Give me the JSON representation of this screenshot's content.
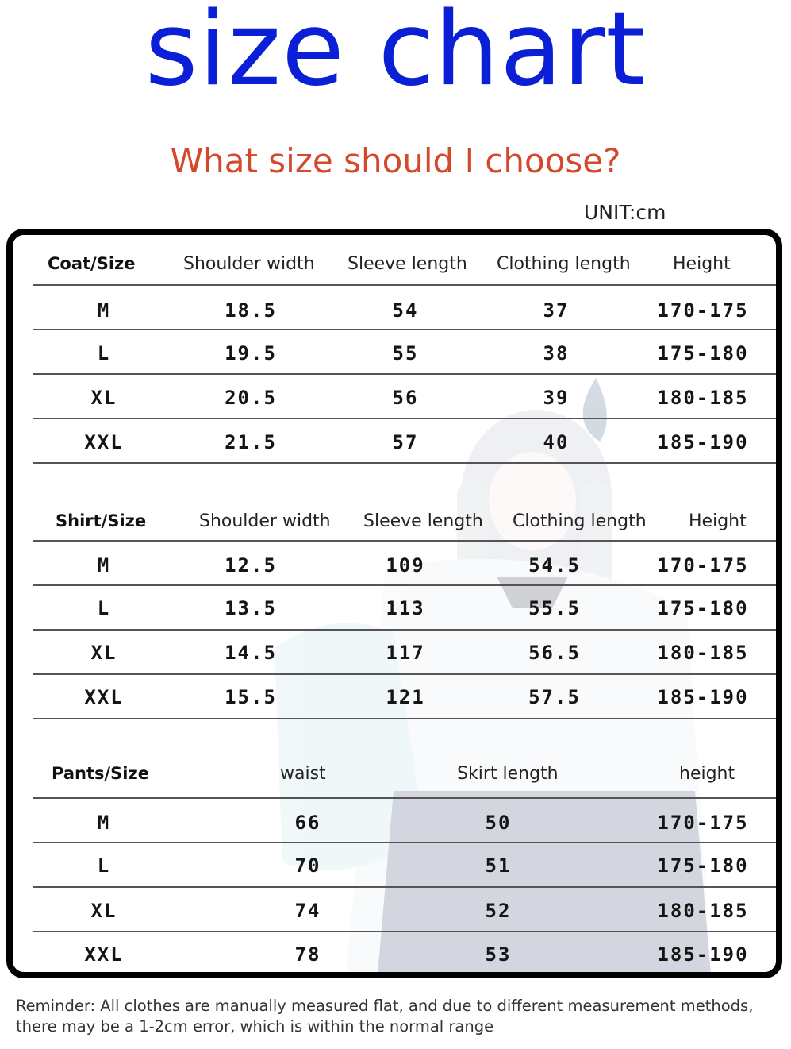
{
  "title": "size chart",
  "subtitle": "What size should I choose?",
  "unit": "UNIT:cm",
  "colors": {
    "title": "#0a1fd6",
    "subtitle": "#d4492c",
    "border": "#000000"
  },
  "coat": {
    "headers": [
      "Coat/Size",
      "Shoulder width",
      "Sleeve length",
      "Clothing length",
      "Height"
    ],
    "rows": [
      [
        "M",
        "18.5",
        "54",
        "37",
        "170-175"
      ],
      [
        "L",
        "19.5",
        "55",
        "38",
        "175-180"
      ],
      [
        "XL",
        "20.5",
        "56",
        "39",
        "180-185"
      ],
      [
        "XXL",
        "21.5",
        "57",
        "40",
        "185-190"
      ]
    ]
  },
  "shirt": {
    "headers": [
      "Shirt/Size",
      "Shoulder width",
      "Sleeve length",
      "Clothing length",
      "Height"
    ],
    "rows": [
      [
        "M",
        "12.5",
        "109",
        "54.5",
        "170-175"
      ],
      [
        "L",
        "13.5",
        "113",
        "55.5",
        "175-180"
      ],
      [
        "XL",
        "14.5",
        "117",
        "56.5",
        "180-185"
      ],
      [
        "XXL",
        "15.5",
        "121",
        "57.5",
        "185-190"
      ]
    ]
  },
  "pants": {
    "headers": [
      "Pants/Size",
      "waist",
      "Skirt length",
      "height"
    ],
    "rows": [
      [
        "M",
        "66",
        "50",
        "170-175"
      ],
      [
        "L",
        "70",
        "51",
        "175-180"
      ],
      [
        "XL",
        "74",
        "52",
        "180-185"
      ],
      [
        "XXL",
        "78",
        "53",
        "185-190"
      ]
    ]
  },
  "reminder": {
    "line1": "Reminder: All clothes are manually measured flat, and due to different measurement methods,",
    "line2": "there may be a 1-2cm error, which is within the normal range"
  }
}
